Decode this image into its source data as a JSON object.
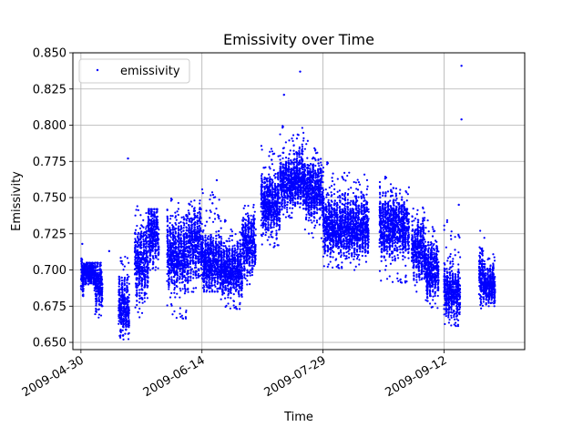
{
  "chart_data": {
    "type": "scatter",
    "title": "Emissivity over Time",
    "xlabel": "Time",
    "ylabel": "Emissivity",
    "xlim": [
      "2009-04-27",
      "2009-10-12"
    ],
    "ylim": [
      0.645,
      0.85
    ],
    "x_ticks": [
      "2009-04-30",
      "2009-06-14",
      "2009-07-29",
      "2009-09-12"
    ],
    "y_ticks": [
      "0.650",
      "0.675",
      "0.700",
      "0.725",
      "0.750",
      "0.775",
      "0.800",
      "0.825",
      "0.850"
    ],
    "grid": true,
    "legend": {
      "position": "top-left",
      "entries": [
        "emissivity"
      ]
    },
    "series": [
      {
        "name": "emissivity",
        "color": "#0000ff",
        "clusters": [
          {
            "start": "2009-04-30",
            "end": "2009-05-01",
            "center": 0.695,
            "spread": 0.008,
            "min": 0.682,
            "max": 0.708
          },
          {
            "start": "2009-05-01",
            "end": "2009-05-05",
            "center": 0.698,
            "spread": 0.005,
            "min": 0.69,
            "max": 0.705
          },
          {
            "start": "2009-05-05",
            "end": "2009-05-08",
            "center": 0.69,
            "spread": 0.01,
            "min": 0.662,
            "max": 0.705
          },
          {
            "start": "2009-05-14",
            "end": "2009-05-18",
            "center": 0.675,
            "spread": 0.012,
            "min": 0.652,
            "max": 0.71
          },
          {
            "start": "2009-05-20",
            "end": "2009-05-25",
            "center": 0.705,
            "spread": 0.015,
            "min": 0.665,
            "max": 0.745
          },
          {
            "start": "2009-05-25",
            "end": "2009-05-29",
            "center": 0.725,
            "spread": 0.012,
            "min": 0.7,
            "max": 0.742
          },
          {
            "start": "2009-06-01",
            "end": "2009-06-09",
            "center": 0.71,
            "spread": 0.015,
            "min": 0.665,
            "max": 0.75
          },
          {
            "start": "2009-06-09",
            "end": "2009-06-14",
            "center": 0.72,
            "spread": 0.014,
            "min": 0.68,
            "max": 0.748
          },
          {
            "start": "2009-06-14",
            "end": "2009-06-21",
            "center": 0.705,
            "spread": 0.012,
            "min": 0.685,
            "max": 0.76
          },
          {
            "start": "2009-06-21",
            "end": "2009-06-29",
            "center": 0.7,
            "spread": 0.011,
            "min": 0.672,
            "max": 0.735
          },
          {
            "start": "2009-06-29",
            "end": "2009-07-04",
            "center": 0.718,
            "spread": 0.012,
            "min": 0.69,
            "max": 0.745
          },
          {
            "start": "2009-07-06",
            "end": "2009-07-13",
            "center": 0.745,
            "spread": 0.012,
            "min": 0.715,
            "max": 0.79
          },
          {
            "start": "2009-07-13",
            "end": "2009-07-18",
            "center": 0.76,
            "spread": 0.01,
            "min": 0.735,
            "max": 0.8
          },
          {
            "start": "2009-07-18",
            "end": "2009-07-22",
            "center": 0.765,
            "spread": 0.012,
            "min": 0.74,
            "max": 0.8
          },
          {
            "start": "2009-07-22",
            "end": "2009-07-29",
            "center": 0.755,
            "spread": 0.012,
            "min": 0.72,
            "max": 0.79
          },
          {
            "start": "2009-07-29",
            "end": "2009-08-06",
            "center": 0.73,
            "spread": 0.012,
            "min": 0.7,
            "max": 0.775
          },
          {
            "start": "2009-08-06",
            "end": "2009-08-15",
            "center": 0.73,
            "spread": 0.012,
            "min": 0.7,
            "max": 0.768
          },
          {
            "start": "2009-08-19",
            "end": "2009-08-30",
            "center": 0.73,
            "spread": 0.012,
            "min": 0.69,
            "max": 0.765
          },
          {
            "start": "2009-08-31",
            "end": "2009-09-05",
            "center": 0.715,
            "spread": 0.012,
            "min": 0.685,
            "max": 0.745
          },
          {
            "start": "2009-09-05",
            "end": "2009-09-10",
            "center": 0.7,
            "spread": 0.011,
            "min": 0.672,
            "max": 0.735
          },
          {
            "start": "2009-09-12",
            "end": "2009-09-18",
            "center": 0.685,
            "spread": 0.01,
            "min": 0.66,
            "max": 0.735
          },
          {
            "start": "2009-09-25",
            "end": "2009-09-27",
            "center": 0.695,
            "spread": 0.01,
            "min": 0.673,
            "max": 0.728
          },
          {
            "start": "2009-09-27",
            "end": "2009-10-01",
            "center": 0.69,
            "spread": 0.008,
            "min": 0.675,
            "max": 0.712
          }
        ],
        "outliers": [
          {
            "x": "2009-05-17",
            "y": 0.777
          },
          {
            "x": "2009-07-14",
            "y": 0.821
          },
          {
            "x": "2009-07-20",
            "y": 0.837
          },
          {
            "x": "2009-09-18",
            "y": 0.841
          },
          {
            "x": "2009-09-18",
            "y": 0.804
          },
          {
            "x": "2009-04-30",
            "y": 0.718
          },
          {
            "x": "2009-05-10",
            "y": 0.713
          },
          {
            "x": "2009-06-19",
            "y": 0.762
          },
          {
            "x": "2009-07-16",
            "y": 0.78
          },
          {
            "x": "2009-09-17",
            "y": 0.745
          }
        ]
      }
    ]
  }
}
